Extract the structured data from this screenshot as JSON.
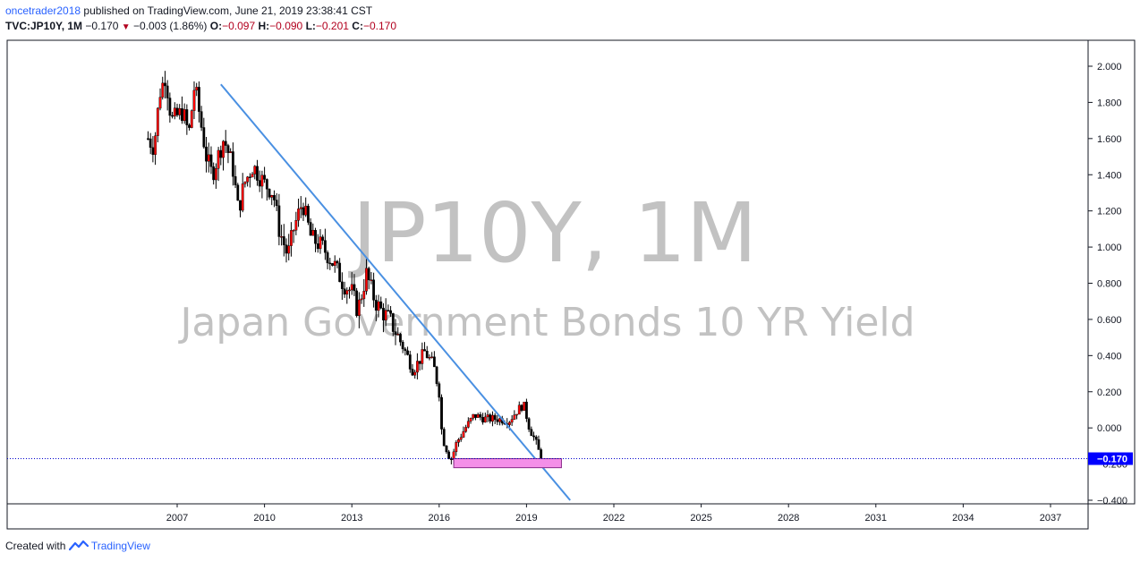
{
  "header": {
    "user": "oncetrader2018",
    "published_text": "published on TradingView.com, June 21, 2019 23:38:41 CST",
    "symbol": "TVC:JP10Y, 1M",
    "last": "−0.170",
    "change": "−0.003 (1.86%)",
    "open_label": "O:",
    "open": "−0.097",
    "high_label": "H:",
    "high": "−0.090",
    "low_label": "L:",
    "low": "−0.201",
    "close_label": "C:",
    "close": "−0.170"
  },
  "watermark": {
    "line1": "JP10Y, 1M",
    "line2": "Japan Government Bonds 10 YR Yield"
  },
  "footer": {
    "created_with": "Created with",
    "brand": "TradingView"
  },
  "colors": {
    "up": "#ff0000",
    "down": "#000000",
    "trendline": "#4a90e2",
    "zone": "#f48fe8",
    "price_tag": "#0000ff"
  },
  "chart_data": {
    "type": "candlestick",
    "interval": "1M",
    "x_ticks": [
      "2007",
      "2010",
      "2013",
      "2016",
      "2019",
      "2022",
      "2025",
      "2028",
      "2031",
      "2034",
      "2037"
    ],
    "y_ticks": [
      "2.000",
      "1.800",
      "1.600",
      "1.400",
      "1.200",
      "1.000",
      "0.800",
      "0.600",
      "0.400",
      "0.200",
      "0.000",
      "−0.400"
    ],
    "ylim": [
      -0.4,
      2.0
    ],
    "xlim": [
      2005.8,
      2038.0
    ],
    "last_price_label": "−0.170",
    "last_price": -0.17,
    "path_keypoints": [
      [
        2006.0,
        1.6
      ],
      [
        2006.2,
        1.55
      ],
      [
        2006.4,
        1.85
      ],
      [
        2006.6,
        1.95
      ],
      [
        2006.8,
        1.7
      ],
      [
        2007.2,
        1.75
      ],
      [
        2007.4,
        1.62
      ],
      [
        2007.6,
        1.9
      ],
      [
        2007.8,
        1.7
      ],
      [
        2008.0,
        1.5
      ],
      [
        2008.2,
        1.4
      ],
      [
        2008.6,
        1.6
      ],
      [
        2008.9,
        1.45
      ],
      [
        2009.1,
        1.2
      ],
      [
        2009.3,
        1.35
      ],
      [
        2009.6,
        1.45
      ],
      [
        2010.0,
        1.35
      ],
      [
        2010.3,
        1.3
      ],
      [
        2010.5,
        1.1
      ],
      [
        2010.8,
        0.95
      ],
      [
        2011.0,
        1.1
      ],
      [
        2011.3,
        1.25
      ],
      [
        2011.6,
        1.05
      ],
      [
        2012.0,
        1.0
      ],
      [
        2012.4,
        0.9
      ],
      [
        2012.7,
        0.8
      ],
      [
        2013.0,
        0.75
      ],
      [
        2013.2,
        0.65
      ],
      [
        2013.5,
        0.85
      ],
      [
        2013.8,
        0.7
      ],
      [
        2014.0,
        0.65
      ],
      [
        2014.3,
        0.6
      ],
      [
        2014.6,
        0.5
      ],
      [
        2014.9,
        0.4
      ],
      [
        2015.1,
        0.32
      ],
      [
        2015.5,
        0.42
      ],
      [
        2015.8,
        0.35
      ],
      [
        2016.0,
        0.2
      ],
      [
        2016.1,
        -0.05
      ],
      [
        2016.4,
        -0.18
      ],
      [
        2016.6,
        -0.08
      ],
      [
        2016.9,
        0.0
      ],
      [
        2017.2,
        0.07
      ],
      [
        2017.6,
        0.05
      ],
      [
        2018.0,
        0.05
      ],
      [
        2018.4,
        0.04
      ],
      [
        2018.7,
        0.1
      ],
      [
        2018.9,
        0.13
      ],
      [
        2019.1,
        0.0
      ],
      [
        2019.3,
        -0.07
      ],
      [
        2019.5,
        -0.17
      ]
    ],
    "trendline": {
      "x": [
        2008.5,
        2020.5
      ],
      "y": [
        1.9,
        -0.4
      ]
    },
    "support_zone": {
      "x": [
        2016.5,
        2020.2
      ],
      "y": [
        -0.22,
        -0.17
      ]
    }
  }
}
